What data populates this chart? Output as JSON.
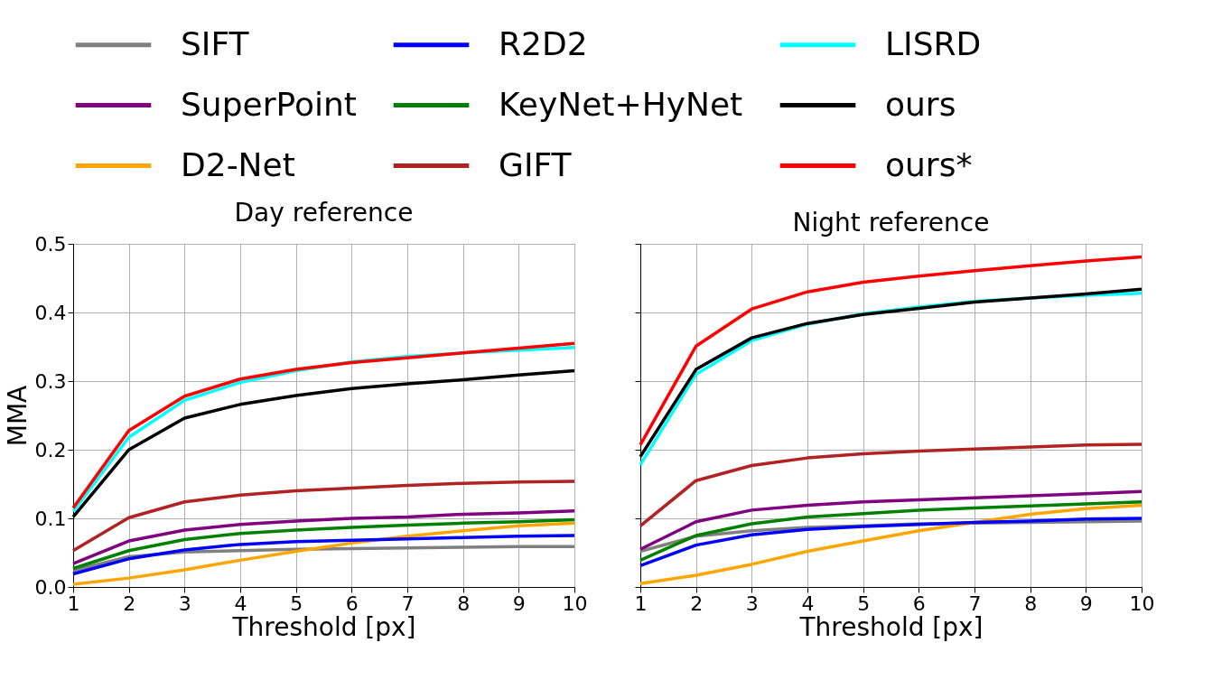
{
  "chart_data": [
    {
      "type": "line",
      "title": "Day reference",
      "xlabel": "Threshold [px]",
      "ylabel": "MMA",
      "x": [
        1,
        2,
        3,
        4,
        5,
        6,
        7,
        8,
        9,
        10
      ],
      "xlim": [
        1,
        10
      ],
      "xticks": [
        1,
        2,
        3,
        4,
        5,
        6,
        7,
        8,
        9,
        10
      ],
      "ylim": [
        0,
        0.5
      ],
      "yticks": [
        {
          "value": 0,
          "label": "0.0"
        },
        0.1,
        0.2,
        0.3,
        0.4,
        0.5
      ],
      "grid": true,
      "legend": "top",
      "marker": "none",
      "line_style": "solid",
      "series": [
        {
          "name": "SIFT",
          "color": "#808080",
          "values": [
            0.024,
            0.044,
            0.051,
            0.053,
            0.055,
            0.056,
            0.057,
            0.058,
            0.059,
            0.059
          ]
        },
        {
          "name": "SuperPoint",
          "color": "#800080",
          "values": [
            0.034,
            0.067,
            0.083,
            0.091,
            0.096,
            0.1,
            0.102,
            0.106,
            0.108,
            0.111
          ]
        },
        {
          "name": "D2-Net",
          "color": "#ffa500",
          "values": [
            0.004,
            0.013,
            0.025,
            0.039,
            0.052,
            0.064,
            0.074,
            0.082,
            0.089,
            0.093
          ]
        },
        {
          "name": "R2D2",
          "color": "#0000ff",
          "values": [
            0.019,
            0.041,
            0.054,
            0.062,
            0.066,
            0.068,
            0.07,
            0.072,
            0.074,
            0.075
          ]
        },
        {
          "name": "KeyNet+HyNet",
          "color": "#008000",
          "values": [
            0.027,
            0.053,
            0.069,
            0.078,
            0.083,
            0.087,
            0.09,
            0.093,
            0.095,
            0.098
          ]
        },
        {
          "name": "GIFT",
          "color": "#b22222",
          "values": [
            0.053,
            0.101,
            0.124,
            0.134,
            0.14,
            0.144,
            0.148,
            0.151,
            0.153,
            0.154
          ]
        },
        {
          "name": "LISRD",
          "color": "#00ffff",
          "values": [
            0.11,
            0.218,
            0.272,
            0.298,
            0.315,
            0.328,
            0.336,
            0.341,
            0.345,
            0.349
          ]
        },
        {
          "name": "ours",
          "color": "#000000",
          "values": [
            0.102,
            0.2,
            0.246,
            0.266,
            0.279,
            0.289,
            0.296,
            0.302,
            0.309,
            0.315
          ]
        },
        {
          "name": "ours*",
          "color": "#ff0000",
          "values": [
            0.115,
            0.228,
            0.278,
            0.303,
            0.317,
            0.327,
            0.334,
            0.341,
            0.348,
            0.355
          ]
        }
      ]
    },
    {
      "type": "line",
      "title": "Night reference",
      "xlabel": "Threshold [px]",
      "x": [
        1,
        2,
        3,
        4,
        5,
        6,
        7,
        8,
        9,
        10
      ],
      "xlim": [
        1,
        10
      ],
      "xticks": [
        1,
        2,
        3,
        4,
        5,
        6,
        7,
        8,
        9,
        10
      ],
      "ylim": [
        0,
        0.5
      ],
      "yticks": [
        0,
        0.1,
        0.2,
        0.3,
        0.4,
        0.5
      ],
      "tick_labels": "x",
      "grid": true,
      "marker": "none",
      "line_style": "solid",
      "series": [
        {
          "name": "SIFT",
          "color": "#808080",
          "values": [
            0.052,
            0.074,
            0.082,
            0.087,
            0.089,
            0.092,
            0.093,
            0.094,
            0.095,
            0.096
          ]
        },
        {
          "name": "SuperPoint",
          "color": "#800080",
          "values": [
            0.055,
            0.095,
            0.112,
            0.119,
            0.124,
            0.127,
            0.13,
            0.133,
            0.136,
            0.139
          ]
        },
        {
          "name": "D2-Net",
          "color": "#ffa500",
          "values": [
            0.005,
            0.017,
            0.033,
            0.052,
            0.067,
            0.082,
            0.094,
            0.106,
            0.114,
            0.119
          ]
        },
        {
          "name": "R2D2",
          "color": "#0000ff",
          "values": [
            0.031,
            0.061,
            0.076,
            0.084,
            0.088,
            0.091,
            0.094,
            0.096,
            0.099,
            0.1
          ]
        },
        {
          "name": "KeyNet+HyNet",
          "color": "#008000",
          "values": [
            0.039,
            0.075,
            0.092,
            0.102,
            0.107,
            0.112,
            0.115,
            0.118,
            0.121,
            0.124
          ]
        },
        {
          "name": "GIFT",
          "color": "#b22222",
          "values": [
            0.089,
            0.155,
            0.177,
            0.188,
            0.194,
            0.198,
            0.201,
            0.204,
            0.207,
            0.208
          ]
        },
        {
          "name": "LISRD",
          "color": "#00ffff",
          "values": [
            0.178,
            0.31,
            0.359,
            0.383,
            0.398,
            0.408,
            0.416,
            0.421,
            0.425,
            0.428
          ]
        },
        {
          "name": "ours",
          "color": "#000000",
          "values": [
            0.19,
            0.317,
            0.363,
            0.384,
            0.397,
            0.406,
            0.415,
            0.421,
            0.427,
            0.434
          ]
        },
        {
          "name": "ours*",
          "color": "#ff0000",
          "values": [
            0.207,
            0.351,
            0.405,
            0.43,
            0.444,
            0.453,
            0.461,
            0.468,
            0.475,
            0.481
          ]
        }
      ]
    }
  ]
}
